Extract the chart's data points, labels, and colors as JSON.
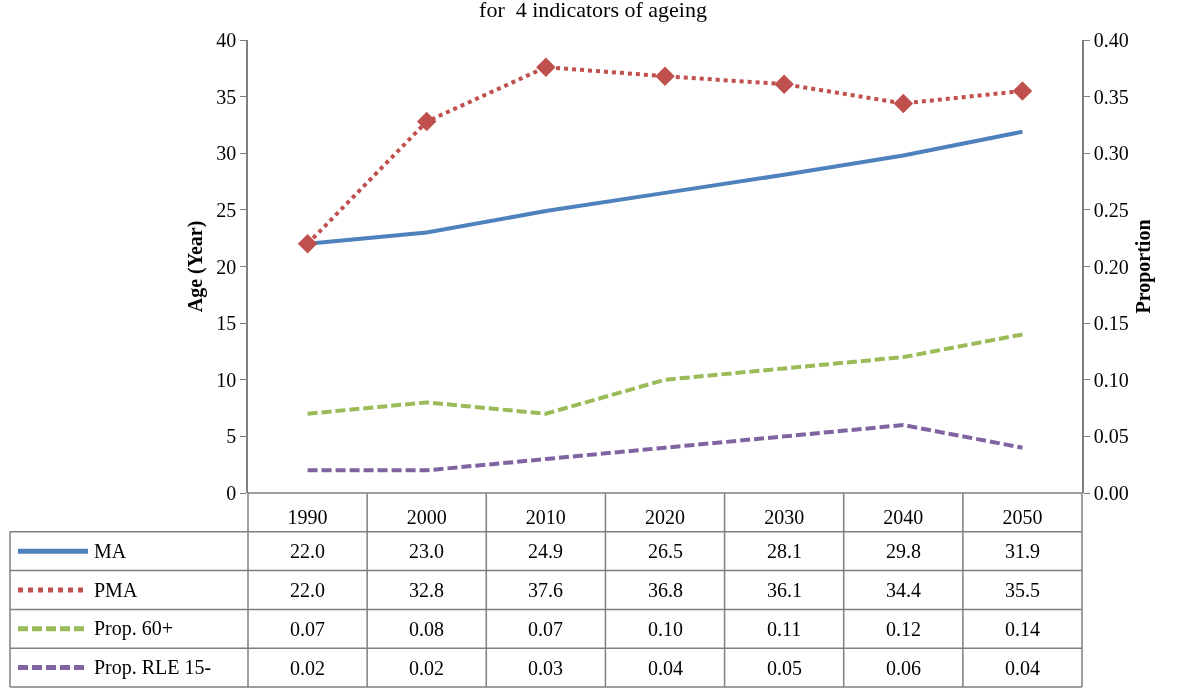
{
  "chart_data": {
    "type": "line",
    "title": "for  4 indicators of ageing",
    "ylabel": "Age (Year)",
    "y2label": "Proportion",
    "categories": [
      "1990",
      "2000",
      "2010",
      "2020",
      "2030",
      "2040",
      "2050"
    ],
    "series": [
      {
        "name": "MA",
        "color": "#4f81bd",
        "line_style": "solid",
        "marker": "none",
        "values": [
          22.0,
          23.0,
          24.9,
          26.5,
          28.1,
          29.8,
          31.9
        ],
        "value_labels": [
          "22.0",
          "23.0",
          "24.9",
          "26.5",
          "28.1",
          "29.8",
          "31.9"
        ]
      },
      {
        "name": "PMA",
        "color": "#c0504d",
        "line_style": "dotted",
        "marker": "diamond",
        "values": [
          22.0,
          32.8,
          37.6,
          36.8,
          36.1,
          34.4,
          35.5
        ],
        "value_labels": [
          "22.0",
          "32.8",
          "37.6",
          "36.8",
          "36.1",
          "34.4",
          "35.5"
        ]
      },
      {
        "name": "Prop. 60+",
        "color": "#9bbb59",
        "line_style": "dashed",
        "marker": "none",
        "axis": "y2",
        "values": [
          0.07,
          0.08,
          0.07,
          0.1,
          0.11,
          0.12,
          0.14
        ],
        "value_labels": [
          "0.07",
          "0.08",
          "0.07",
          "0.10",
          "0.11",
          "0.12",
          "0.14"
        ]
      },
      {
        "name": "Prop. RLE 15-",
        "color": "#8064a2",
        "line_style": "dashed",
        "marker": "none",
        "axis": "y2",
        "values": [
          0.02,
          0.02,
          0.03,
          0.04,
          0.05,
          0.06,
          0.04
        ],
        "value_labels": [
          "0.02",
          "0.02",
          "0.03",
          "0.04",
          "0.05",
          "0.06",
          "0.04"
        ]
      }
    ],
    "ylim": [
      0,
      40
    ],
    "yticks": [
      0,
      5,
      10,
      15,
      20,
      25,
      30,
      35,
      40
    ],
    "y2lim": [
      0,
      0.4
    ],
    "y2ticks": [
      {
        "value": 0,
        "label": "0.00"
      },
      {
        "value": 0.05,
        "label": "0.05"
      },
      {
        "value": 0.1,
        "label": "0.10"
      },
      {
        "value": 0.15,
        "label": "0.15"
      },
      {
        "value": 0.2,
        "label": "0.20"
      },
      {
        "value": 0.25,
        "label": "0.25"
      },
      {
        "value": 0.3,
        "label": "0.30"
      },
      {
        "value": 0.35,
        "label": "0.35"
      },
      {
        "value": 0.4,
        "label": "0.40"
      }
    ],
    "legend": "bottom left"
  }
}
